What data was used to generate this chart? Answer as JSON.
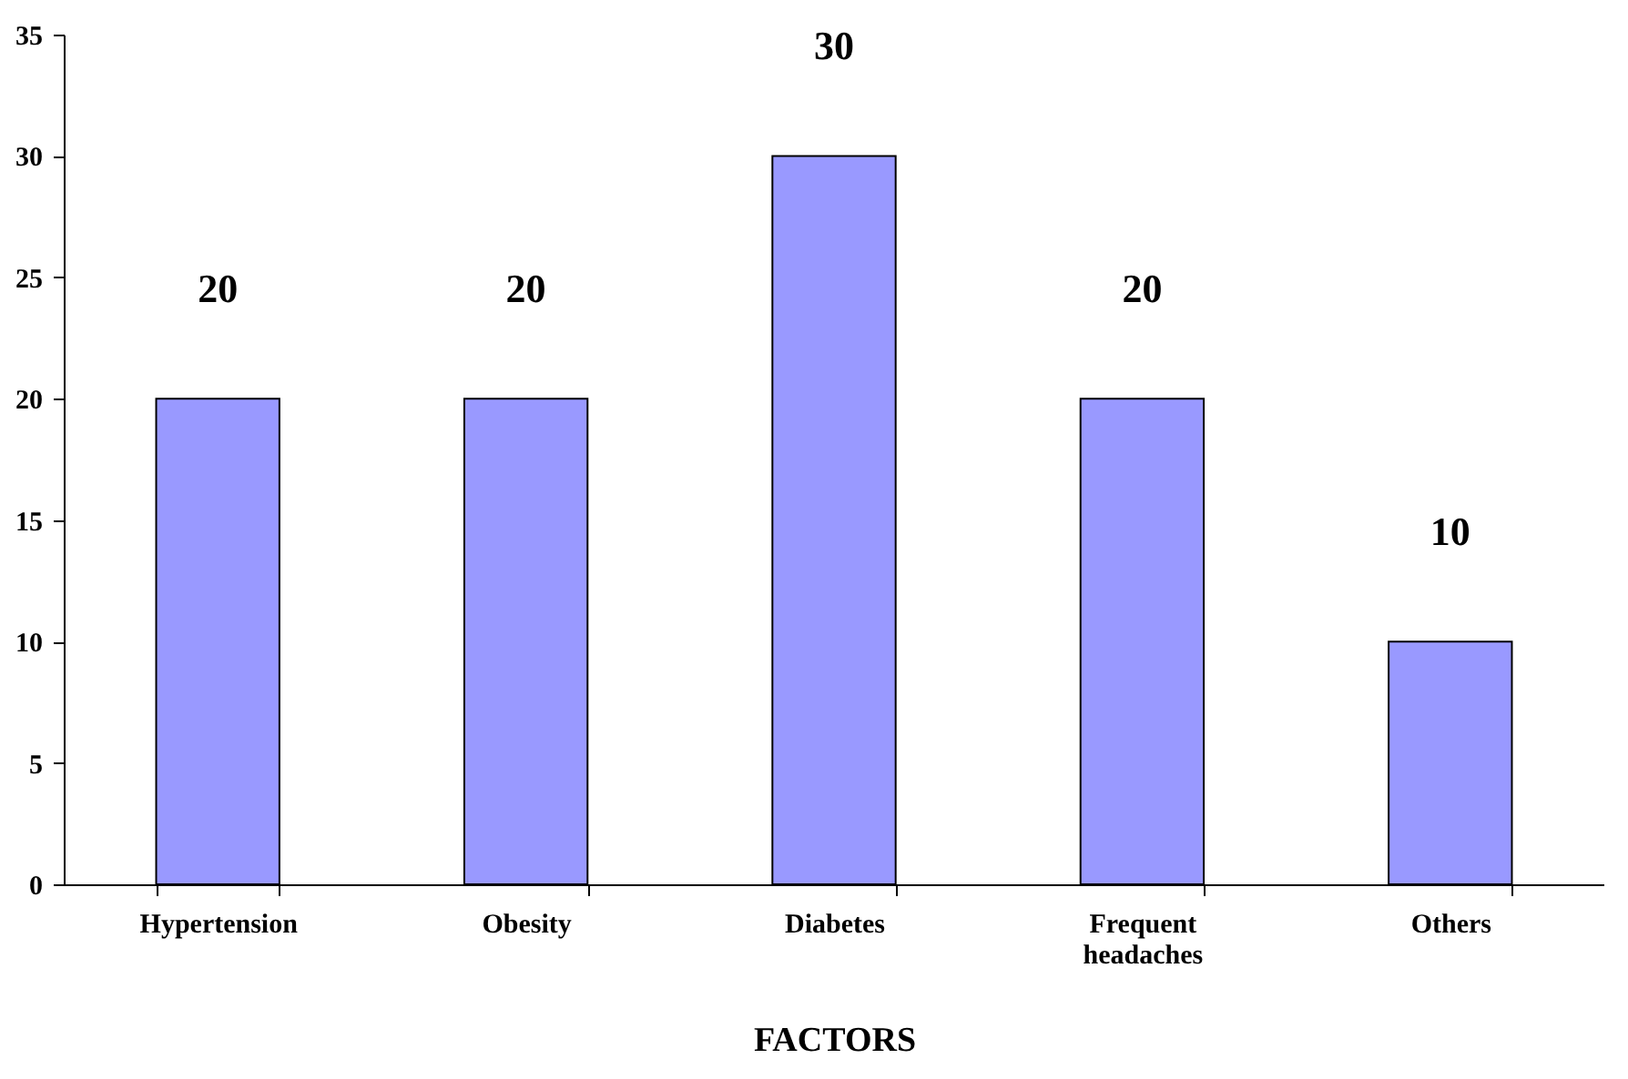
{
  "chart_data": {
    "type": "bar",
    "xlabel": "FACTORS",
    "categories": [
      "Hypertension",
      "Obesity",
      "Diabetes",
      "Frequent headaches",
      "Others"
    ],
    "values": [
      20,
      20,
      30,
      20,
      10
    ],
    "color": "#9999ff",
    "ylim": [
      0,
      35
    ],
    "yticks": [
      0,
      5,
      10,
      15,
      20,
      25,
      30,
      35
    ],
    "grid": false,
    "data_labels": true
  }
}
